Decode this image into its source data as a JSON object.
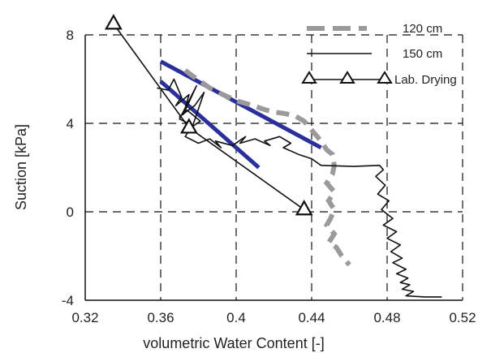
{
  "chart_data": {
    "type": "line",
    "xlabel": "volumetric Water Content [-]",
    "ylabel": "Suction [kPa]",
    "xlim": [
      0.32,
      0.52
    ],
    "ylim": [
      -4,
      8
    ],
    "xticks": [
      "0.32",
      "0.36",
      "0.4",
      "0.44",
      "0.48",
      "0.52"
    ],
    "yticks": [
      "-4",
      "0",
      "4",
      "8"
    ],
    "grid": "dashed",
    "legend_position": "top-right",
    "series": [
      {
        "name": "120 cm",
        "style": "dashed",
        "color": "#9a9a9a",
        "x": [
          0.373,
          0.376,
          0.381,
          0.386,
          0.393,
          0.401,
          0.409,
          0.416,
          0.421,
          0.425,
          0.428,
          0.431,
          0.433,
          0.436,
          0.438,
          0.441,
          0.445,
          0.448,
          0.451,
          0.452,
          0.451,
          0.448,
          0.452,
          0.449,
          0.452,
          0.45,
          0.448,
          0.452,
          0.449,
          0.453,
          0.456,
          0.458,
          0.46
        ],
        "y": [
          6.4,
          6.2,
          5.9,
          5.6,
          5.3,
          5.0,
          4.8,
          4.6,
          4.5,
          4.45,
          4.4,
          4.35,
          4.25,
          4.1,
          3.9,
          3.6,
          3.2,
          2.8,
          2.6,
          2.1,
          1.7,
          1.3,
          0.9,
          0.5,
          0.1,
          -0.3,
          -0.6,
          -1.0,
          -1.4,
          -1.6,
          -2.0,
          -2.2,
          -2.4
        ]
      },
      {
        "name": "150 cm",
        "style": "solid",
        "color": "#111111",
        "x": [
          0.358,
          0.364,
          0.367,
          0.371,
          0.368,
          0.375,
          0.372,
          0.379,
          0.37,
          0.377,
          0.383,
          0.378,
          0.37,
          0.374,
          0.381,
          0.376,
          0.373,
          0.38,
          0.386,
          0.392,
          0.389,
          0.398,
          0.405,
          0.402,
          0.41,
          0.418,
          0.415,
          0.423,
          0.429,
          0.425,
          0.433,
          0.44,
          0.445,
          0.462,
          0.476,
          0.478,
          0.474,
          0.479,
          0.475,
          0.481,
          0.477,
          0.483,
          0.478,
          0.485,
          0.48,
          0.487,
          0.482,
          0.488,
          0.483,
          0.49,
          0.485,
          0.491,
          0.487,
          0.492,
          0.488,
          0.494,
          0.49,
          0.5,
          0.509
        ],
        "y": [
          5.6,
          5.5,
          6.0,
          5.2,
          4.8,
          5.3,
          4.4,
          5.7,
          4.2,
          3.9,
          5.4,
          4.8,
          4.3,
          4.6,
          4.1,
          3.8,
          3.4,
          3.1,
          3.3,
          2.9,
          3.2,
          3.0,
          3.4,
          3.1,
          3.3,
          3.0,
          3.2,
          3.4,
          3.1,
          2.9,
          2.6,
          2.4,
          2.1,
          2.05,
          2.1,
          1.9,
          1.6,
          1.2,
          0.8,
          0.5,
          0.1,
          -0.3,
          -0.6,
          -0.9,
          -1.2,
          -1.5,
          -1.8,
          -2.1,
          -2.3,
          -2.6,
          -2.8,
          -3.0,
          -3.2,
          -3.3,
          -3.5,
          -3.6,
          -3.8,
          -3.85,
          -3.85
        ]
      },
      {
        "name": "Lab. Drying",
        "style": "solid-triangles",
        "color": "#111111",
        "x": [
          0.335,
          0.375,
          0.436
        ],
        "y": [
          8.5,
          3.8,
          0.1
        ]
      }
    ],
    "fit_lines": [
      {
        "color": "#2b2f9b",
        "x": [
          0.36,
          0.445
        ],
        "y": [
          6.8,
          2.9
        ]
      },
      {
        "color": "#2b2f9b",
        "x": [
          0.36,
          0.412
        ],
        "y": [
          5.9,
          2.0
        ]
      }
    ]
  }
}
